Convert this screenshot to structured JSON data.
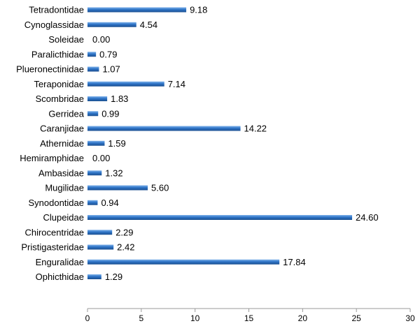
{
  "chart_data": {
    "type": "bar",
    "orientation": "horizontal",
    "title": "",
    "xlabel": "",
    "ylabel": "",
    "xlim": [
      0,
      30
    ],
    "x_ticks": [
      "0",
      "5",
      "10",
      "15",
      "20",
      "25",
      "30"
    ],
    "grid": false,
    "bar_color": "#2e74c7",
    "categories": [
      "Tetradontidae",
      "Cynoglassidae",
      "Soleidae",
      "Paralicthidae",
      "Plueronectinidae",
      "Teraponidae",
      "Scombridae",
      "Gerridea",
      "Caranjidae",
      "Athernidae",
      "Hemiramphidae",
      "Ambasidae",
      "Mugilidae",
      "Synodontidae",
      "Clupeidae",
      "Chirocentridae",
      "Pristigasteridae",
      "Enguralidae",
      "Ophicthidae"
    ],
    "values": [
      9.18,
      4.54,
      0.0,
      0.79,
      1.07,
      7.14,
      1.83,
      0.99,
      14.22,
      1.59,
      0.0,
      1.32,
      5.6,
      0.94,
      24.6,
      2.29,
      2.42,
      17.84,
      1.29
    ],
    "value_labels": [
      "9.18",
      "4.54",
      "0.00",
      "0.79",
      "1.07",
      "7.14",
      "1.83",
      "0.99",
      "14.22",
      "1.59",
      "0.00",
      "1.32",
      "5.60",
      "0.94",
      "24.60",
      "2.29",
      "2.42",
      "17.84",
      "1.29"
    ]
  }
}
